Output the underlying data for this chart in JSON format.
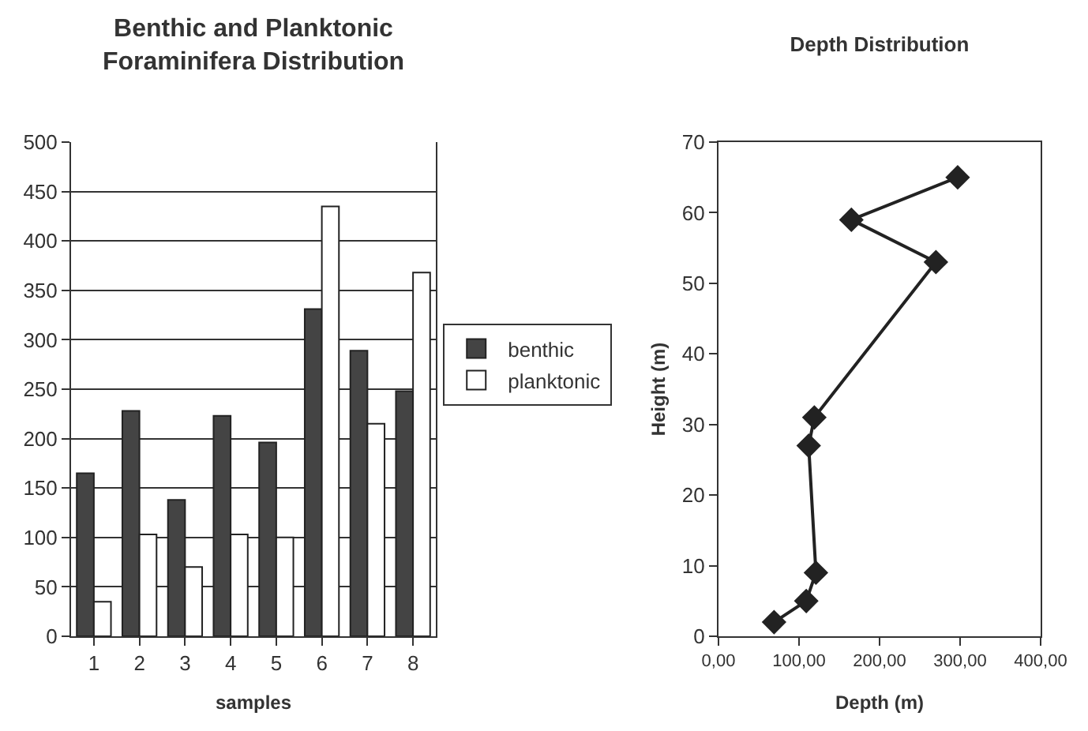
{
  "chart_data": [
    {
      "type": "bar",
      "title": "Benthic and Planktonic Foraminifera Distribution",
      "xlabel": "samples",
      "categories": [
        "1",
        "2",
        "3",
        "4",
        "5",
        "6",
        "7",
        "8"
      ],
      "series": [
        {
          "name": "benthic",
          "color": "#444444",
          "values": [
            165,
            228,
            138,
            223,
            196,
            331,
            289,
            248
          ]
        },
        {
          "name": "planktonic",
          "color": "#ffffff",
          "values": [
            35,
            103,
            70,
            103,
            100,
            435,
            215,
            368
          ]
        }
      ],
      "ylim": [
        0,
        500
      ],
      "yticks": [
        0,
        50,
        100,
        150,
        200,
        250,
        300,
        350,
        400,
        450,
        500
      ],
      "grid": "y",
      "legend": "right"
    },
    {
      "type": "line",
      "title": "Depth Distribution",
      "xlabel": "Depth (m)",
      "ylabel": "Height (m)",
      "series": [
        {
          "color": "#222222",
          "x": [
            69,
            109,
            121,
            112,
            119,
            270,
            165,
            297
          ],
          "values": [
            2,
            5,
            9,
            27,
            31,
            53,
            59,
            65
          ]
        }
      ],
      "xlim": [
        0,
        400
      ],
      "xticks": [
        {
          "value": 0,
          "label": "0,00"
        },
        {
          "value": 100,
          "label": "100,00"
        },
        {
          "value": 200,
          "label": "200,00"
        },
        {
          "value": 300,
          "label": "300,00"
        },
        {
          "value": 400,
          "label": "400,00"
        }
      ],
      "ylim": [
        0,
        70
      ],
      "yticks": [
        0,
        10,
        20,
        30,
        40,
        50,
        60,
        70
      ],
      "marker": "diamond",
      "line_style": "solid",
      "grid": false,
      "legend": false
    }
  ]
}
